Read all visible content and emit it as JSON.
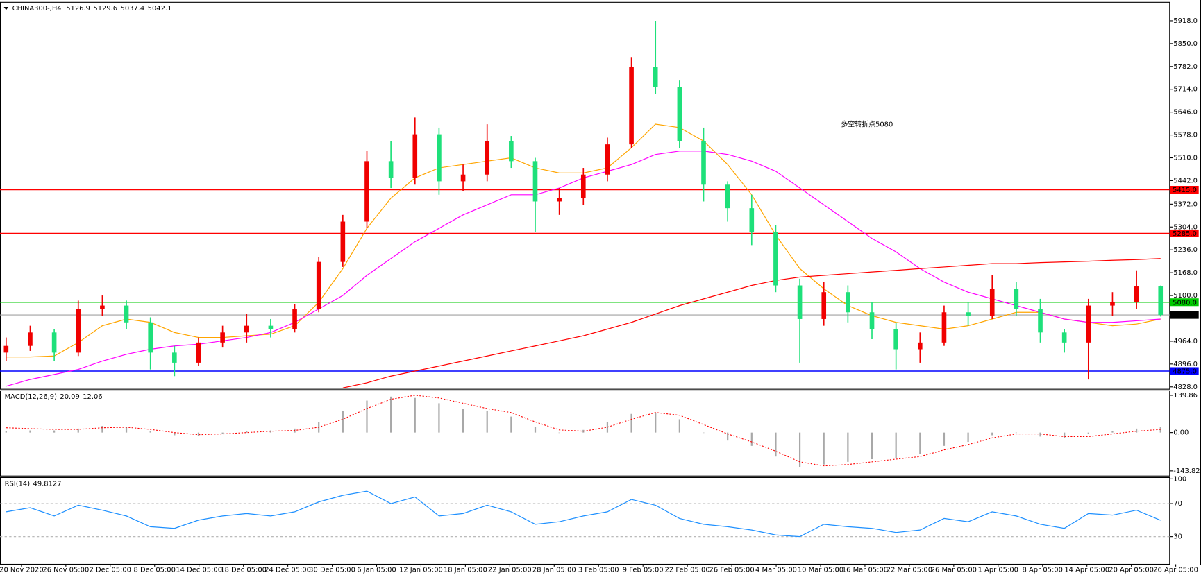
{
  "chart_data": [
    {
      "type": "candlestick",
      "title": "CHINA300-,H4",
      "header_values": [
        5126.9,
        5129.6,
        5037.4,
        5042.1
      ],
      "up_color": "#f00000",
      "down_color": "#1ee07a",
      "open": [
        4930,
        4950,
        4990,
        4930,
        5060,
        5070,
        5020,
        4930,
        4900,
        4960,
        4990,
        5010,
        5000,
        5060,
        5200,
        5320,
        5500,
        5450,
        5580,
        5440,
        5460,
        5560,
        5500,
        5380,
        5390,
        5460,
        5550,
        5780,
        5720,
        5560,
        5430,
        5360,
        5290,
        5130,
        5030,
        5110,
        5050,
        5000,
        4940,
        4960,
        5050,
        5040,
        5120,
        5060,
        4990,
        4960,
        5070,
        5080,
        5126.9
      ],
      "high": [
        4975,
        5010,
        5000,
        5085,
        5100,
        5085,
        5035,
        4950,
        4975,
        5010,
        5045,
        5030,
        5075,
        5215,
        5340,
        5530,
        5560,
        5630,
        5600,
        5490,
        5610,
        5575,
        5510,
        5420,
        5480,
        5570,
        5810,
        5918,
        5740,
        5600,
        5440,
        5400,
        5310,
        5150,
        5140,
        5130,
        5080,
        5020,
        4990,
        5070,
        5080,
        5160,
        5140,
        5090,
        5000,
        5090,
        5110,
        5175,
        5129.6
      ],
      "low": [
        4905,
        4935,
        4905,
        4920,
        5040,
        5000,
        4880,
        4860,
        4890,
        4945,
        4960,
        4975,
        4990,
        5050,
        5185,
        5300,
        5420,
        5430,
        5400,
        5410,
        5440,
        5480,
        5290,
        5340,
        5370,
        5440,
        5540,
        5700,
        5540,
        5380,
        5320,
        5250,
        5110,
        4900,
        5010,
        5020,
        4970,
        4880,
        4900,
        4950,
        5010,
        5030,
        5040,
        4960,
        4930,
        4850,
        5040,
        5060,
        5037.4
      ],
      "close": [
        4950,
        4990,
        4930,
        5060,
        5070,
        5020,
        4930,
        4900,
        4960,
        4990,
        5010,
        5000,
        5060,
        5200,
        5320,
        5500,
        5450,
        5580,
        5440,
        5460,
        5560,
        5500,
        5380,
        5390,
        5460,
        5550,
        5780,
        5720,
        5560,
        5430,
        5360,
        5290,
        5130,
        5030,
        5110,
        5050,
        5000,
        4940,
        4960,
        5050,
        5040,
        5120,
        5060,
        4990,
        4960,
        5070,
        5080,
        5126.9,
        5042.1
      ],
      "series": [
        {
          "color": "#ffa500",
          "values": [
            4917,
            4917,
            4920,
            4960,
            5010,
            5030,
            5020,
            4990,
            4975,
            4975,
            4980,
            4985,
            5010,
            5080,
            5180,
            5300,
            5390,
            5450,
            5480,
            5490,
            5500,
            5510,
            5480,
            5465,
            5465,
            5480,
            5540,
            5610,
            5600,
            5560,
            5490,
            5400,
            5280,
            5180,
            5120,
            5070,
            5040,
            5020,
            5010,
            5000,
            5010,
            5030,
            5050,
            5050,
            5030,
            5020,
            5010,
            5015,
            5030
          ]
        },
        {
          "color": "#ff00ff",
          "values": [
            4830,
            4850,
            4865,
            4880,
            4905,
            4925,
            4940,
            4950,
            4955,
            4965,
            4975,
            4990,
            5020,
            5060,
            5100,
            5160,
            5210,
            5260,
            5300,
            5340,
            5370,
            5400,
            5400,
            5420,
            5450,
            5470,
            5490,
            5520,
            5530,
            5530,
            5520,
            5500,
            5470,
            5420,
            5370,
            5320,
            5270,
            5230,
            5180,
            5140,
            5110,
            5090,
            5070,
            5050,
            5030,
            5020,
            5020,
            5025,
            5030
          ]
        },
        {
          "color": "#ff0000",
          "values": [
            null,
            null,
            null,
            null,
            null,
            null,
            null,
            null,
            null,
            null,
            null,
            null,
            null,
            null,
            4825,
            4840,
            4860,
            4875,
            4890,
            4905,
            4920,
            4935,
            4950,
            4965,
            4980,
            5000,
            5020,
            5045,
            5070,
            5090,
            5110,
            5130,
            5145,
            5155,
            5160,
            5165,
            5170,
            5175,
            5180,
            5185,
            5190,
            5195,
            5195,
            5198,
            5200,
            5202,
            5205,
            5207,
            5210
          ]
        }
      ],
      "levels": [
        {
          "value": 5415,
          "label": "5415.0",
          "color": "#ff0000"
        },
        {
          "value": 5285,
          "label": "5285.0",
          "color": "#ff0000"
        },
        {
          "value": 5080,
          "label": "5080.0",
          "color": "#00c800"
        },
        {
          "value": 4875,
          "label": "4875.0",
          "color": "#0000ff"
        },
        {
          "value": 5042.1,
          "color": "#000000"
        }
      ],
      "annotation": {
        "text": "多空转折点5080",
        "color": "#e8202a"
      },
      "ylim": [
        4821,
        5973
      ],
      "yticks": [
        {
          "value": 5918,
          "label": "5918.0"
        },
        {
          "value": 5850,
          "label": "5850.0"
        },
        {
          "value": 5782,
          "label": "5782.0"
        },
        {
          "value": 5714,
          "label": "5714.0"
        },
        {
          "value": 5646,
          "label": "5646.0"
        },
        {
          "value": 5578,
          "label": "5578.0"
        },
        {
          "value": 5510,
          "label": "5510.0"
        },
        {
          "value": 5442,
          "label": "5442.0"
        },
        {
          "value": 5372,
          "label": "5372.0"
        },
        {
          "value": 5304,
          "label": "5304.0"
        },
        {
          "value": 5236,
          "label": "5236.0"
        },
        {
          "value": 5168,
          "label": "5168.0"
        },
        {
          "value": 5100,
          "label": "5100.0"
        },
        {
          "value": 4964,
          "label": "4964.0"
        },
        {
          "value": 4896,
          "label": "4896.0"
        },
        {
          "value": 4828,
          "label": "4828.0"
        }
      ]
    },
    {
      "type": "macd",
      "title": "MACD(12,26,9)",
      "header_values": [
        20.09,
        12.06
      ],
      "hist_color": "#a8a8a8",
      "signal_color": "#ff0000",
      "histogram": [
        5,
        8,
        8,
        15,
        25,
        20,
        5,
        -10,
        -12,
        -5,
        5,
        8,
        15,
        40,
        80,
        120,
        135,
        130,
        110,
        90,
        80,
        60,
        20,
        0,
        10,
        40,
        70,
        75,
        50,
        0,
        -30,
        -50,
        -90,
        -130,
        -120,
        -110,
        -100,
        -95,
        -80,
        -50,
        -35,
        -10,
        0,
        -15,
        -20,
        -5,
        5,
        15,
        20.09
      ],
      "signal": [
        18,
        15,
        12,
        12,
        18,
        20,
        12,
        0,
        -8,
        -5,
        0,
        5,
        8,
        20,
        50,
        90,
        125,
        140,
        130,
        110,
        90,
        75,
        40,
        10,
        5,
        20,
        50,
        75,
        65,
        30,
        -5,
        -35,
        -70,
        -110,
        -125,
        -120,
        -110,
        -100,
        -90,
        -65,
        -45,
        -20,
        -5,
        -5,
        -15,
        -15,
        -5,
        5,
        12.06
      ],
      "ylim": [
        -163,
        157
      ],
      "yticks": [
        139.86,
        {
          "value": 0,
          "label": "0.00"
        },
        -143.82
      ]
    },
    {
      "type": "line",
      "title": "RSI(14)",
      "header_values": [
        49.8127
      ],
      "color": "#1e90ff",
      "values": [
        60,
        65,
        55,
        68,
        62,
        55,
        42,
        40,
        50,
        55,
        58,
        55,
        60,
        72,
        80,
        85,
        70,
        78,
        55,
        58,
        68,
        60,
        45,
        48,
        55,
        60,
        75,
        68,
        52,
        45,
        42,
        38,
        32,
        30,
        45,
        42,
        40,
        35,
        38,
        52,
        48,
        60,
        55,
        45,
        40,
        58,
        56,
        62,
        49.8127
      ],
      "levels": [
        70,
        30
      ],
      "ylim": [
        -3.5,
        101.6
      ],
      "yticks": [
        100,
        70,
        30
      ],
      "x_labels": [
        "20 Nov 2020",
        "26 Nov 05:00",
        "2 Dec 05:00",
        "8 Dec 05:00",
        "14 Dec 05:00",
        "18 Dec 05:00",
        "24 Dec 05:00",
        "30 Dec 05:00",
        "6 Jan 05:00",
        "12 Jan 05:00",
        "18 Jan 05:00",
        "22 Jan 05:00",
        "28 Jan 05:00",
        "3 Feb 05:00",
        "9 Feb 05:00",
        "22 Feb 05:00",
        "26 Feb 05:00",
        "4 Mar 05:00",
        "10 Mar 05:00",
        "16 Mar 05:00",
        "22 Mar 05:00",
        "26 Mar 05:00",
        "1 Apr 05:00",
        "8 Apr 05:00",
        "14 Apr 05:00",
        "20 Apr 05:00",
        "26 Apr 05:00"
      ]
    }
  ]
}
